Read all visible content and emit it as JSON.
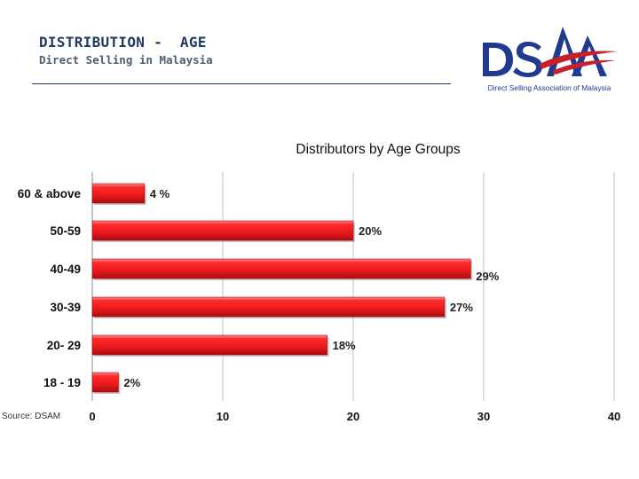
{
  "header": {
    "title": "DISTRIBUTION -  AGE",
    "subtitle": "Direct Selling in Malaysia"
  },
  "logo": {
    "letters": "DSAA",
    "caption": "Direct Selling Association of Malaysia",
    "colors": {
      "navy": "#1f3a8f",
      "red": "#c8202a"
    }
  },
  "source": "Source: DSAM",
  "chart_data": {
    "type": "bar",
    "orientation": "horizontal",
    "title": "Distributors by Age Groups",
    "categories": [
      "60 & above",
      "50-59",
      "40-49",
      "30-39",
      "20- 29",
      "18 - 19"
    ],
    "values": [
      4,
      20,
      29,
      27,
      18,
      2
    ],
    "data_labels": [
      "4 %",
      "20%",
      "29%",
      "27%",
      "18%",
      "2%"
    ],
    "xlim": [
      0,
      40
    ],
    "xticks": [
      "0",
      "10",
      "20",
      "30",
      "40"
    ],
    "grid": "vertical",
    "bar_color": "#e8191c",
    "xlabel": "",
    "ylabel": ""
  }
}
